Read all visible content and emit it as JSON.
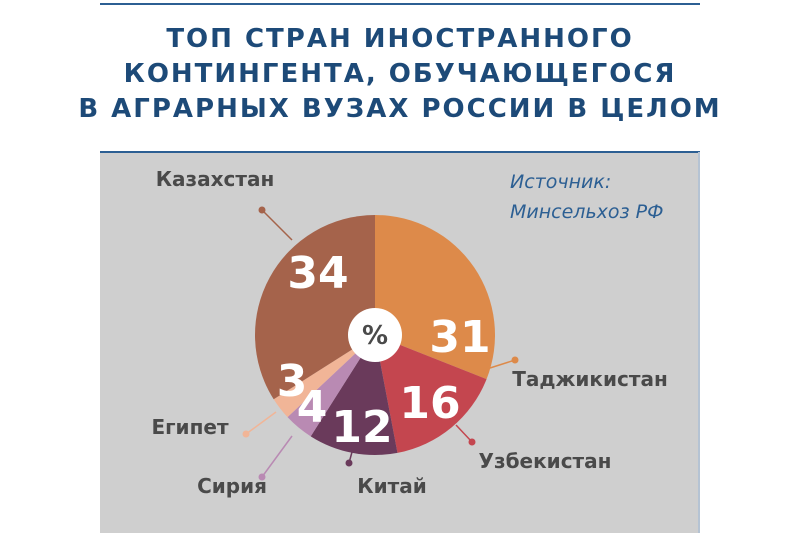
{
  "chart_data": {
    "type": "pie",
    "title": [
      "ТОП СТРАН ИНОСТРАННОГО",
      "КОНТИНГЕНТА, ОБУЧАЮЩЕГОСЯ",
      "В АГРАРНЫХ ВУЗАХ РОССИИ В ЦЕЛОМ"
    ],
    "source": [
      "Источник:",
      "Минсельхоз РФ"
    ],
    "center_label": "%",
    "categories": [
      "Таджикистан",
      "Узбекистан",
      "Китай",
      "Сирия",
      "Египет",
      "Казахстан"
    ],
    "values": [
      31,
      16,
      12,
      4,
      3,
      34
    ],
    "colors": [
      "#dd8a4a",
      "#c4464f",
      "#6a3a5b",
      "#b98ab3",
      "#f1b597",
      "#a5634b"
    ]
  }
}
